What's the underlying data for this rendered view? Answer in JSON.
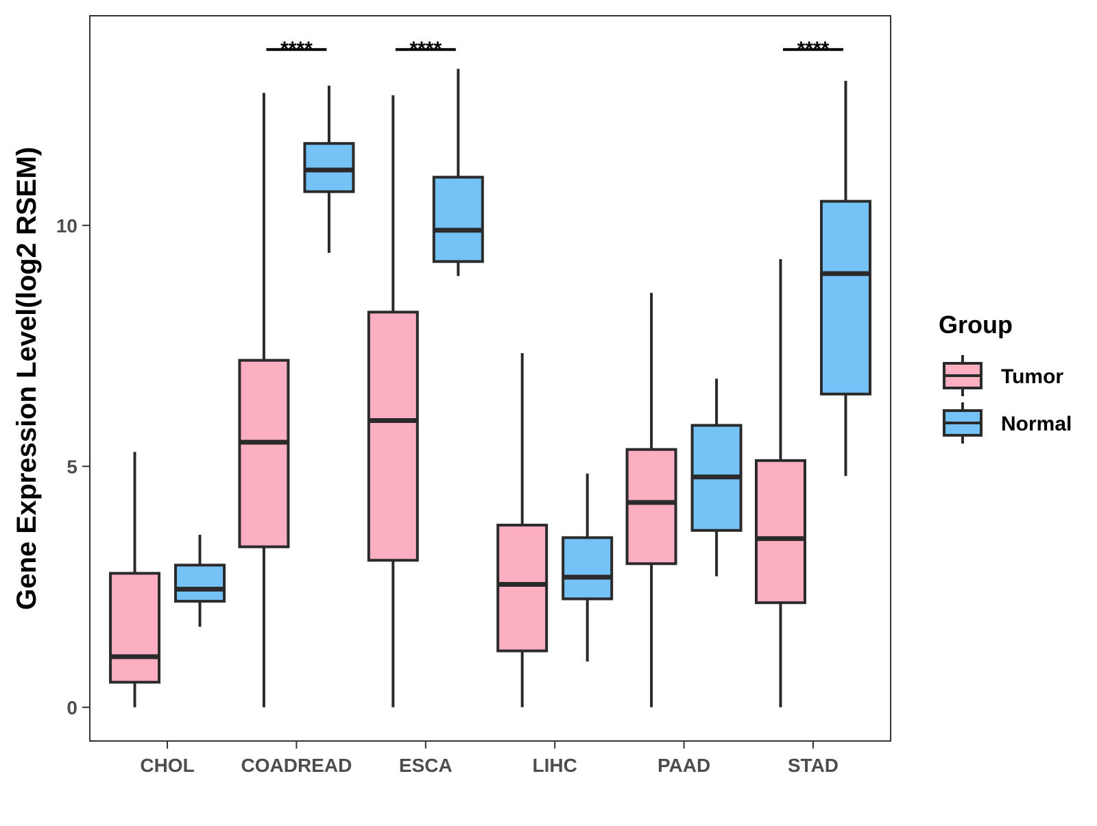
{
  "chart_data": {
    "type": "boxplot",
    "title": "",
    "xlabel": "",
    "ylabel": "Gene Expression Level(log2 RSEM)",
    "ylim": [
      -0.7,
      14.35
    ],
    "yticks": [
      0,
      5,
      10
    ],
    "ytick_labels": [
      "0",
      "5",
      "10"
    ],
    "categories": [
      "CHOL",
      "COADREAD",
      "ESCA",
      "LIHC",
      "PAAD",
      "STAD"
    ],
    "legend": {
      "title": "Group",
      "position": "right",
      "entries": [
        {
          "name": "Tumor",
          "color": "#FBAFC1"
        },
        {
          "name": "Normal",
          "color": "#75C2F6"
        }
      ]
    },
    "series": [
      {
        "name": "Tumor",
        "color": "#FBAFC1",
        "boxes": [
          {
            "category": "CHOL",
            "min": 0.0,
            "q1": 0.52,
            "median": 1.05,
            "q3": 2.78,
            "max": 5.3
          },
          {
            "category": "COADREAD",
            "min": 0.0,
            "q1": 3.33,
            "median": 5.5,
            "q3": 7.2,
            "max": 12.75
          },
          {
            "category": "ESCA",
            "min": 0.0,
            "q1": 3.05,
            "median": 5.95,
            "q3": 8.2,
            "max": 12.7
          },
          {
            "category": "LIHC",
            "min": 0.0,
            "q1": 1.17,
            "median": 2.55,
            "q3": 3.78,
            "max": 7.35
          },
          {
            "category": "PAAD",
            "min": 0.0,
            "q1": 2.98,
            "median": 4.25,
            "q3": 5.35,
            "max": 8.6
          },
          {
            "category": "STAD",
            "min": 0.0,
            "q1": 2.17,
            "median": 3.5,
            "q3": 5.12,
            "max": 9.3
          }
        ]
      },
      {
        "name": "Normal",
        "color": "#75C2F6",
        "boxes": [
          {
            "category": "CHOL",
            "min": 1.67,
            "q1": 2.2,
            "median": 2.45,
            "q3": 2.95,
            "max": 3.58
          },
          {
            "category": "COADREAD",
            "min": 9.43,
            "q1": 10.7,
            "median": 11.15,
            "q3": 11.7,
            "max": 12.9
          },
          {
            "category": "ESCA",
            "min": 8.95,
            "q1": 9.25,
            "median": 9.9,
            "q3": 11.0,
            "max": 13.25
          },
          {
            "category": "LIHC",
            "min": 0.95,
            "q1": 2.25,
            "median": 2.7,
            "q3": 3.52,
            "max": 4.85
          },
          {
            "category": "PAAD",
            "min": 2.72,
            "q1": 3.67,
            "median": 4.78,
            "q3": 5.85,
            "max": 6.82
          },
          {
            "category": "STAD",
            "min": 4.8,
            "q1": 6.5,
            "median": 9.0,
            "q3": 10.5,
            "max": 13.0
          }
        ]
      }
    ],
    "annotations": [
      {
        "category": "COADREAD",
        "label": "****",
        "y": 13.65
      },
      {
        "category": "ESCA",
        "label": "****",
        "y": 13.65
      },
      {
        "category": "STAD",
        "label": "****",
        "y": 13.65
      }
    ]
  }
}
